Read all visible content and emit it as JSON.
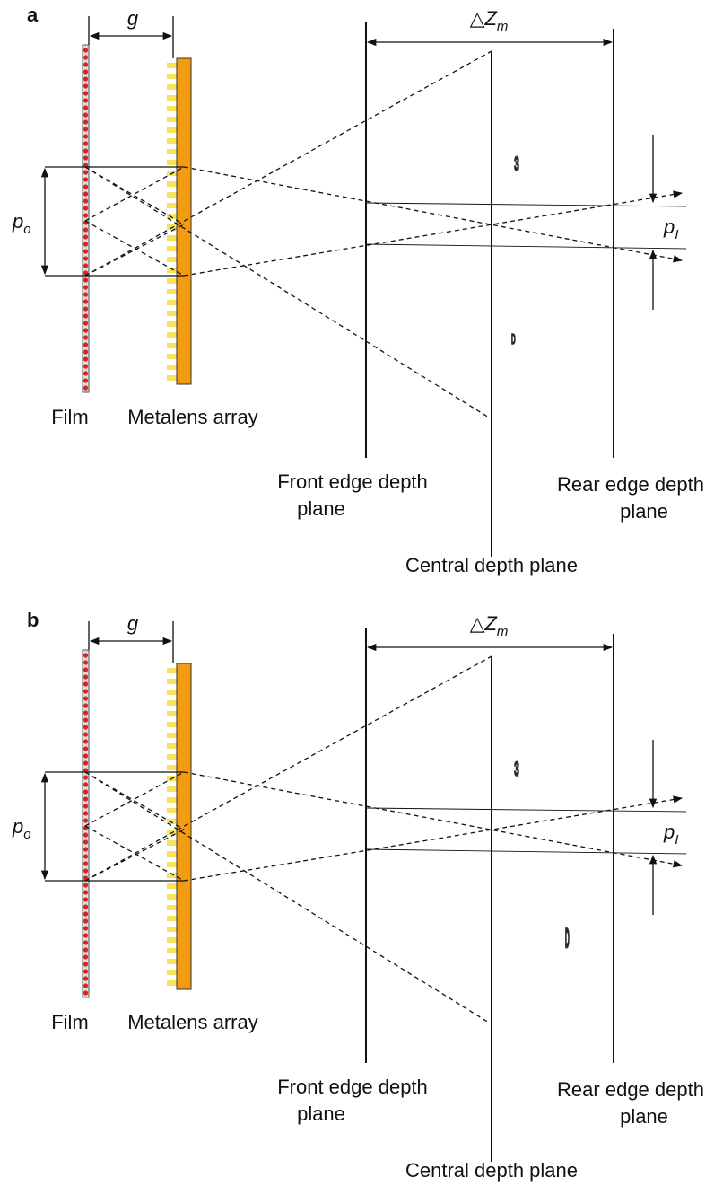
{
  "panels": [
    {
      "label": "a",
      "gap": "g",
      "depth": {
        "symbol": "△Z",
        "subscript": "m"
      },
      "object_pitch": {
        "symbol": "p",
        "subscript": "o"
      },
      "image_pitch": {
        "symbol": "p",
        "subscript": "I"
      },
      "film": "Film",
      "metalens": "Metalens array",
      "front": [
        "Front edge depth",
        "plane"
      ],
      "rear": [
        "Rear edge depth",
        "plane"
      ],
      "central": "Central depth plane",
      "glyphs": [
        "3",
        "D"
      ]
    },
    {
      "label": "b",
      "gap": "g",
      "depth": {
        "symbol": "△Z",
        "subscript": "m"
      },
      "object_pitch": {
        "symbol": "p",
        "subscript": "o"
      },
      "image_pitch": {
        "symbol": "p",
        "subscript": "I"
      },
      "film": "Film",
      "metalens": "Metalens array",
      "front": [
        "Front edge depth",
        "plane"
      ],
      "rear": [
        "Rear edge depth",
        "plane"
      ],
      "central": "Central depth plane",
      "glyphs": [
        "3",
        "D"
      ]
    }
  ]
}
